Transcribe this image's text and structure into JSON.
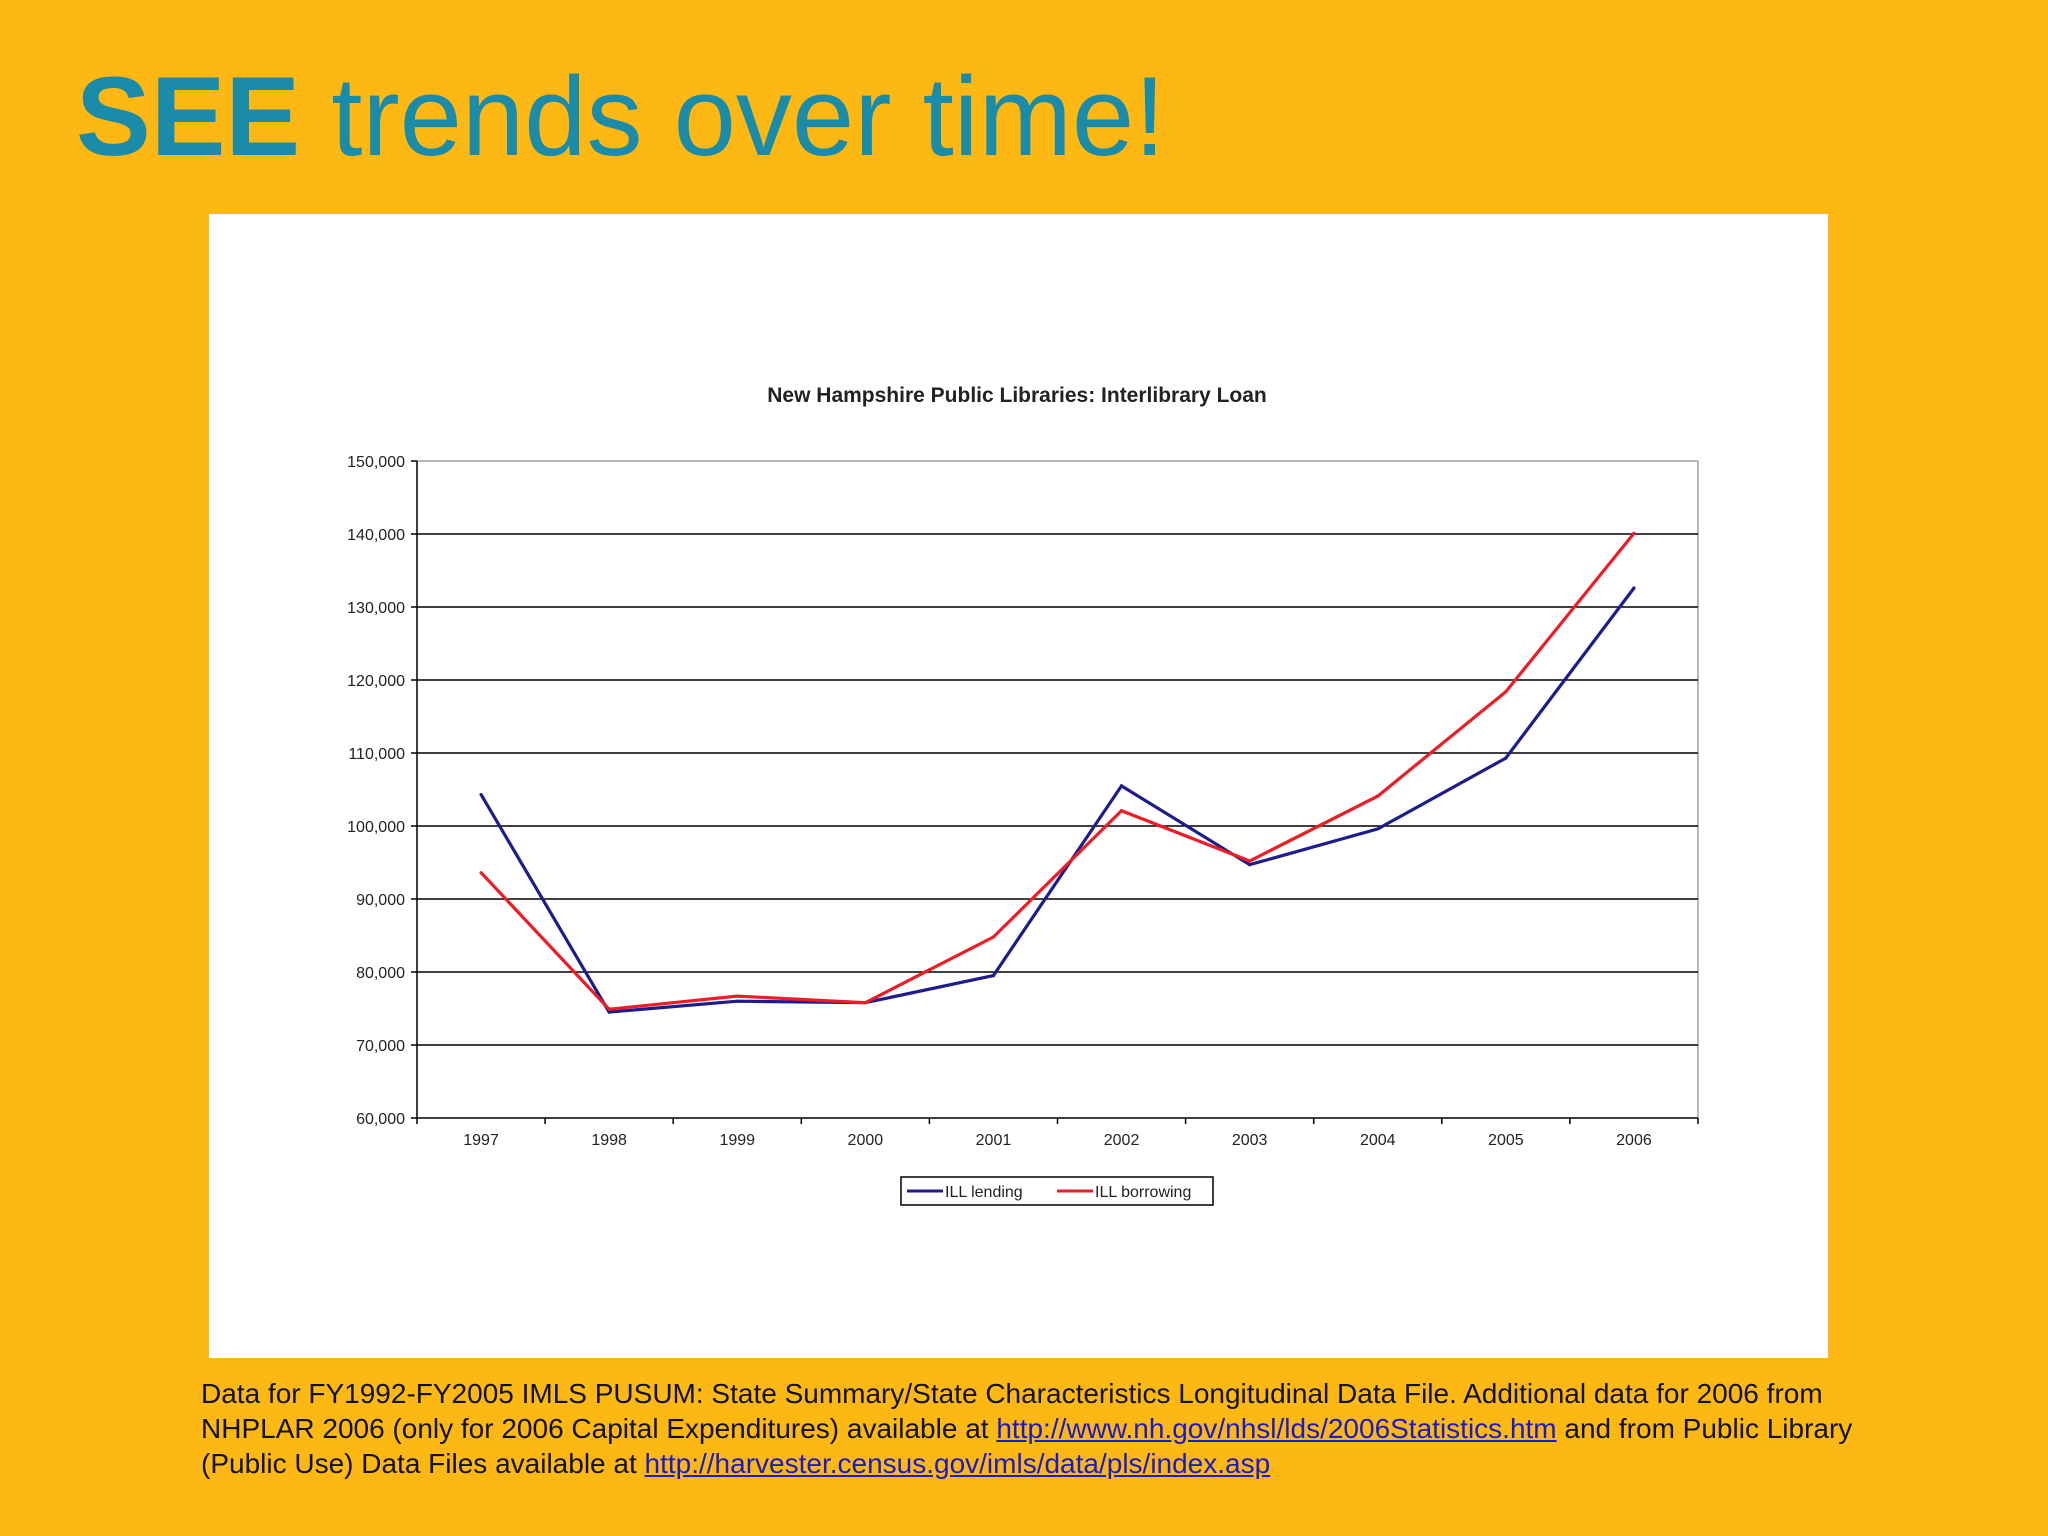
{
  "slide": {
    "title_strong": "SEE",
    "title_rest": " trends over time!"
  },
  "source_note": {
    "text1": "Data for FY1992-FY2005 IMLS PUSUM: State Summary/State Characteristics Longitudinal Data File. Additional data for 2006 from NHPLAR 2006 (only for 2006 Capital Expenditures) available at ",
    "link1": "http://www.nh.gov/nhsl/lds/2006Statistics.htm",
    "text2": " and from Public Library (Public Use) Data Files available at ",
    "link2": "http://harvester.census.gov/imls/data/pls/index.asp"
  },
  "colors": {
    "background": "#FDB813",
    "title": "#1A8BA8",
    "lending": "#1C1C8C",
    "borrowing": "#EE1C25"
  },
  "chart_data": {
    "type": "line",
    "title": "New Hampshire Public Libraries: Interlibrary Loan",
    "xlabel": "",
    "ylabel": "",
    "categories": [
      "1997",
      "1998",
      "1999",
      "2000",
      "2001",
      "2002",
      "2003",
      "2004",
      "2005",
      "2006"
    ],
    "ylim": [
      60000,
      150000
    ],
    "yticks": [
      60000,
      70000,
      80000,
      90000,
      100000,
      110000,
      120000,
      130000,
      140000,
      150000
    ],
    "ytick_labels": [
      "60,000",
      "70,000",
      "80,000",
      "90,000",
      "100,000",
      "110,000",
      "120,000",
      "130,000",
      "140,000",
      "150,000"
    ],
    "grid": true,
    "legend_position": "bottom",
    "series": [
      {
        "name": "ILL lending",
        "color": "#1C1C8C",
        "values": [
          104300,
          74500,
          76000,
          75800,
          79500,
          105500,
          94700,
          99600,
          109300,
          132600
        ]
      },
      {
        "name": "ILL borrowing",
        "color": "#EE1C25",
        "values": [
          93600,
          74900,
          76700,
          75800,
          84800,
          102100,
          95200,
          104100,
          118400,
          140100
        ]
      }
    ]
  }
}
